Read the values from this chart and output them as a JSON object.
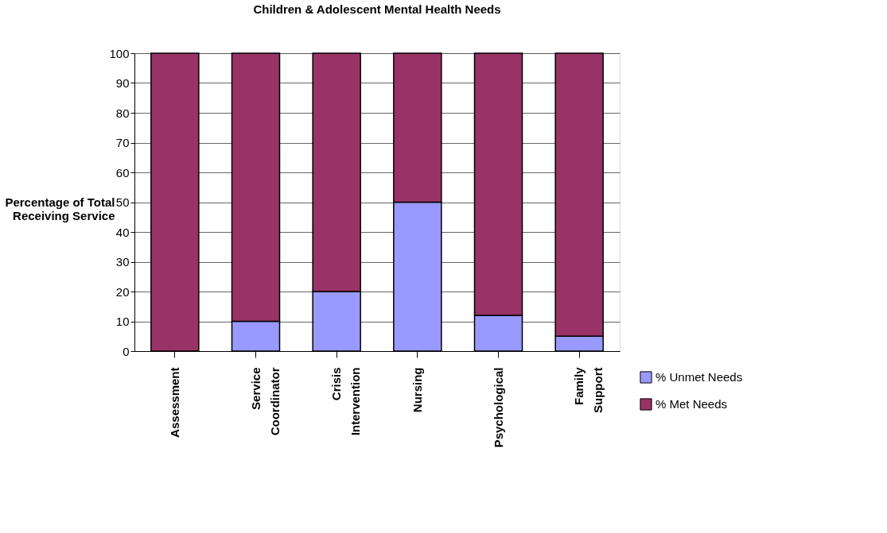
{
  "chart_data": {
    "type": "bar",
    "title": "Children & Adolescent Mental Health Needs",
    "ylabel": "Percentage of Total Receiving Service",
    "categories": [
      "Assessment",
      "Service Coordinator",
      "Crisis Intervention",
      "Nursing",
      "Psychological",
      "Family Support"
    ],
    "stacked": true,
    "series": [
      {
        "name": "% Unmet Needs",
        "color": "#9999ff",
        "values": [
          0,
          10,
          20,
          50,
          12,
          5
        ]
      },
      {
        "name": "% Met Needs",
        "color": "#993366",
        "values": [
          100,
          90,
          80,
          50,
          88,
          95
        ]
      }
    ],
    "ylim": [
      0,
      100
    ],
    "yticks": [
      0,
      10,
      20,
      30,
      40,
      50,
      60,
      70,
      80,
      90,
      100
    ],
    "grid": "y",
    "legend": "bottom right"
  }
}
